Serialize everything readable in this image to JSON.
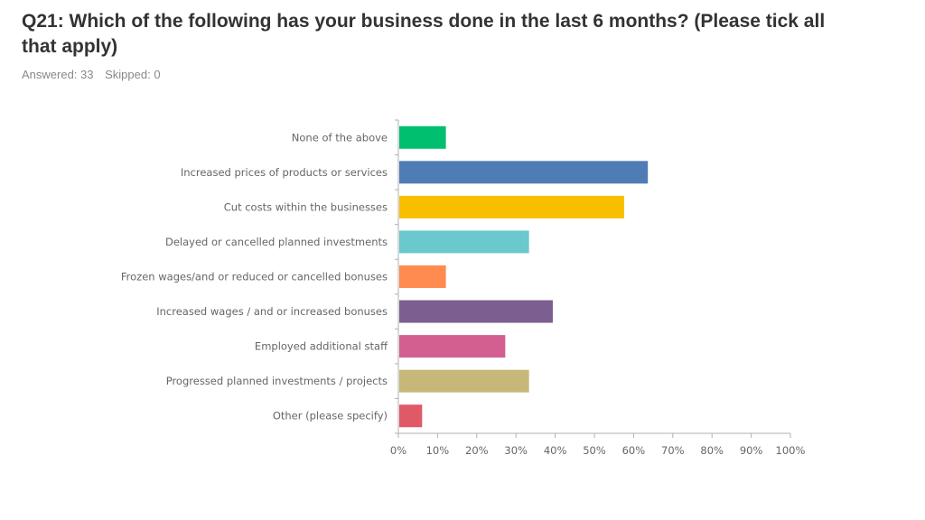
{
  "header": {
    "title": "Q21: Which of the following has your business done in the last 6 months? (Please tick all that apply)",
    "answered": "Answered: 33",
    "skipped": "Skipped: 0"
  },
  "chart_data": {
    "type": "bar",
    "orientation": "horizontal",
    "title": "Q21: Which of the following has your business done in the last 6 months? (Please tick all that apply)",
    "xlabel": "",
    "ylabel": "",
    "xlim": [
      0,
      100
    ],
    "x_ticks": [
      "0%",
      "10%",
      "20%",
      "30%",
      "40%",
      "50%",
      "60%",
      "70%",
      "80%",
      "90%",
      "100%"
    ],
    "categories": [
      "None of the above",
      "Increased prices of products or services",
      "Cut costs within the businesses",
      "Delayed or cancelled planned investments",
      "Frozen wages/and or reduced or cancelled bonuses",
      "Increased wages / and or increased bonuses",
      "Employed additional staff",
      "Progressed planned investments / projects",
      "Other (please specify)"
    ],
    "values": [
      12.12,
      63.64,
      57.58,
      33.33,
      12.12,
      39.39,
      27.27,
      33.33,
      6.06
    ],
    "colors": [
      "#00bf6f",
      "#507cb6",
      "#f9be00",
      "#6bc8cd",
      "#ff8b4f",
      "#7d5e90",
      "#d25f90",
      "#c7b879",
      "#e05966"
    ],
    "grid": false
  }
}
